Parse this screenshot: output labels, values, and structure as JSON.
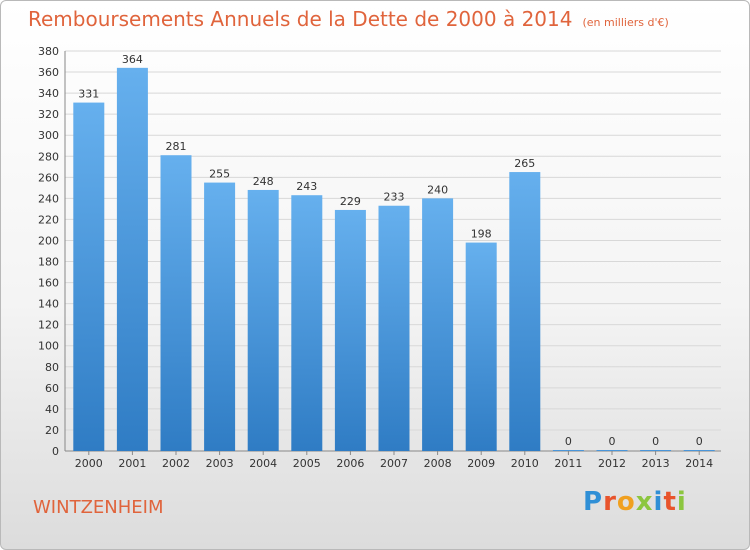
{
  "title": "Remboursements Annuels de la Dette de 2000 à 2014",
  "unit": "(en milliers d'€)",
  "commune": "WINTZENHEIM",
  "logo": {
    "text": "Proxiti",
    "letter_colors": [
      "#2f8fd6",
      "#e8542c",
      "#f0a020",
      "#8cc63f",
      "#2f8fd6",
      "#e8542c",
      "#8cc63f"
    ]
  },
  "colors": {
    "bar": "#4a9be0",
    "bar_light": "#6cb4f0",
    "bar_dark": "#2f7fc8",
    "title": "#e0643c"
  },
  "chart_data": {
    "type": "bar",
    "title": "Remboursements Annuels de la Dette de 2000 à 2014",
    "categories": [
      "2000",
      "2001",
      "2002",
      "2003",
      "2004",
      "2005",
      "2006",
      "2007",
      "2008",
      "2009",
      "2010",
      "2011",
      "2012",
      "2013",
      "2014"
    ],
    "values": [
      331,
      364,
      281,
      255,
      248,
      243,
      229,
      233,
      240,
      198,
      265,
      0,
      0,
      0,
      0
    ],
    "ylim": [
      0,
      380
    ],
    "yticks": [
      0,
      20,
      40,
      60,
      80,
      100,
      120,
      140,
      160,
      180,
      200,
      220,
      240,
      260,
      280,
      300,
      320,
      340,
      360,
      380
    ],
    "grid": true
  }
}
